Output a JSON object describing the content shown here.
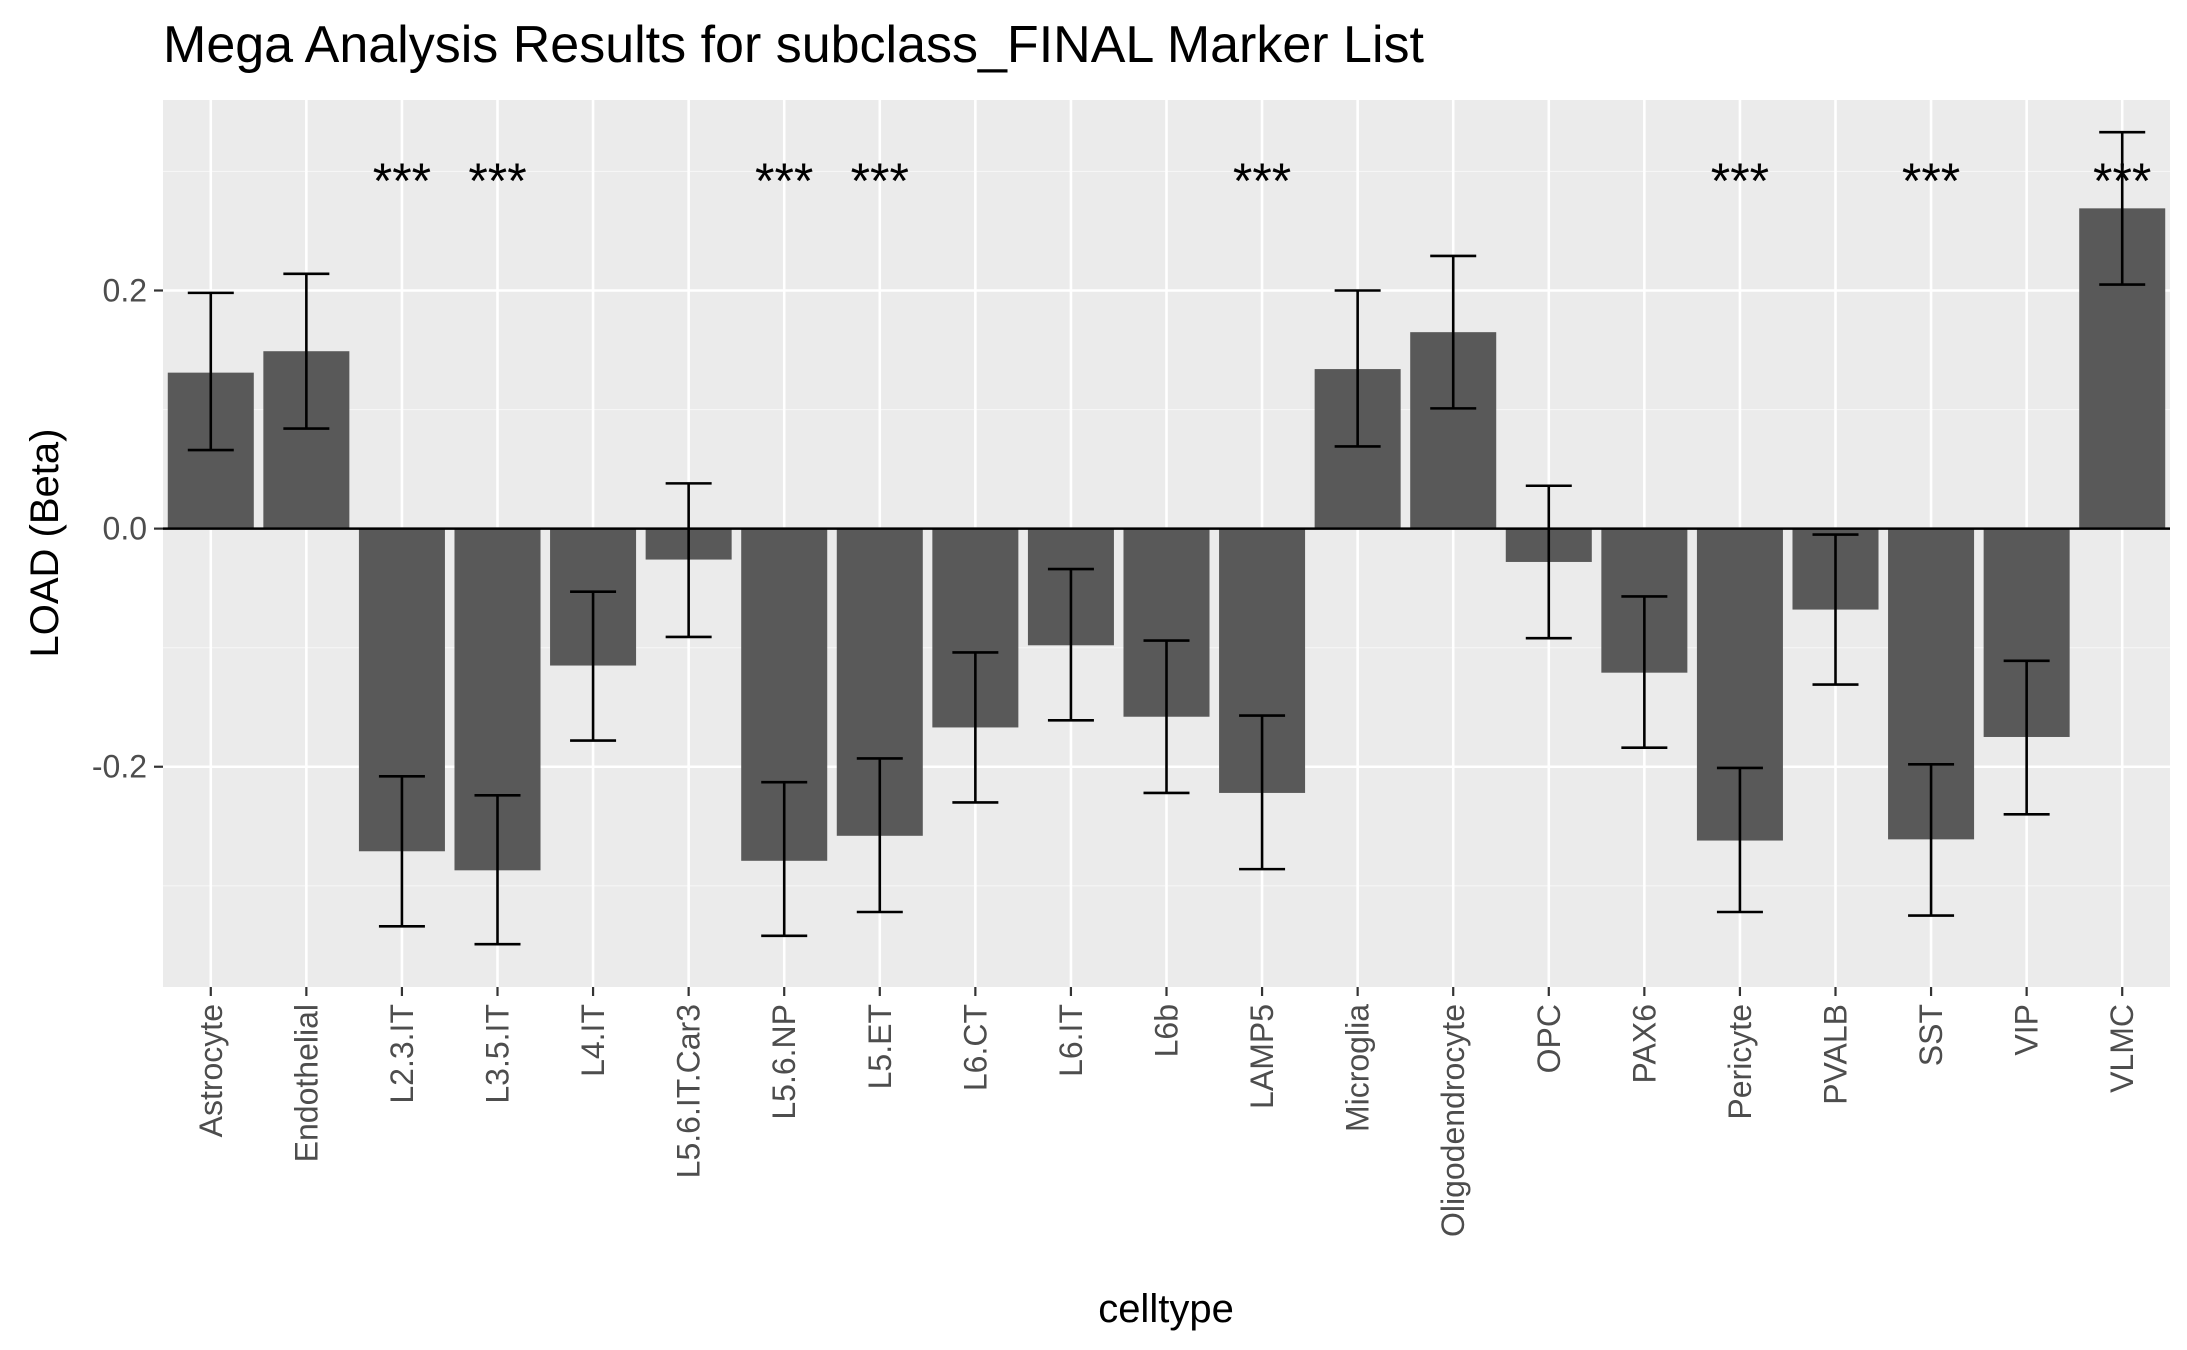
{
  "chart_data": {
    "type": "bar",
    "title": "Mega Analysis Results for subclass_FINAL Marker List",
    "xlabel": "celltype",
    "ylabel": "LOAD (Beta)",
    "ylim": [
      -0.385,
      0.36
    ],
    "yticks": [
      -0.2,
      0.0,
      0.2
    ],
    "ytick_labels": [
      "-0.2",
      "0.0",
      "0.2"
    ],
    "grid": true,
    "colors": {
      "panel_bg": "#ebebeb",
      "grid_major": "#ffffff",
      "bar": "#595959",
      "zero_line": "#000000",
      "error_bar": "#000000",
      "tick_text": "#4d4d4d"
    },
    "categories": [
      "Astrocyte",
      "Endothelial",
      "L2.3.IT",
      "L3.5.IT",
      "L4.IT",
      "L5.6.IT.Car3",
      "L5.6.NP",
      "L5.ET",
      "L6.CT",
      "L6.IT",
      "L6b",
      "LAMP5",
      "Microglia",
      "Oligodendrocyte",
      "OPC",
      "PAX6",
      "Pericyte",
      "PVALB",
      "SST",
      "VIP",
      "VLMC"
    ],
    "values": [
      0.131,
      0.149,
      -0.271,
      -0.287,
      -0.115,
      -0.026,
      -0.279,
      -0.258,
      -0.167,
      -0.098,
      -0.158,
      -0.222,
      0.134,
      0.165,
      -0.028,
      -0.121,
      -0.262,
      -0.068,
      -0.261,
      -0.175,
      0.269
    ],
    "error_low": [
      0.066,
      0.084,
      -0.334,
      -0.349,
      -0.178,
      -0.091,
      -0.342,
      -0.322,
      -0.23,
      -0.161,
      -0.222,
      -0.286,
      0.069,
      0.101,
      -0.092,
      -0.184,
      -0.322,
      -0.131,
      -0.325,
      -0.24,
      0.205
    ],
    "error_high": [
      0.198,
      0.214,
      -0.208,
      -0.224,
      -0.053,
      0.038,
      -0.213,
      -0.193,
      -0.104,
      -0.034,
      -0.094,
      -0.157,
      0.2,
      0.229,
      0.036,
      -0.057,
      -0.201,
      -0.005,
      -0.198,
      -0.111,
      0.333
    ],
    "annotations": [
      "",
      "",
      "***",
      "***",
      "",
      "",
      "***",
      "***",
      "",
      "",
      "",
      "***",
      "",
      "",
      "",
      "",
      "***",
      "",
      "***",
      "",
      "***"
    ]
  }
}
